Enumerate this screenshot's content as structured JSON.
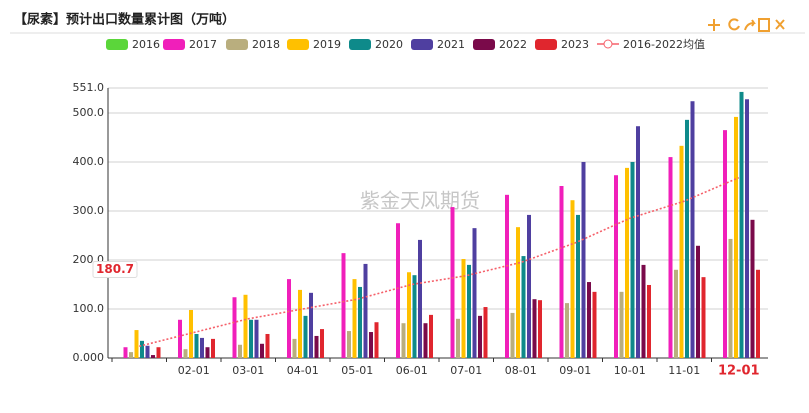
{
  "chart_data": {
    "type": "bar",
    "title": "【尿素】预计出口数量累计图（万吨）",
    "watermark": "紫金天风期货",
    "categories": [
      null,
      "02-01",
      "03-01",
      "04-01",
      "05-01",
      "06-01",
      "07-01",
      "08-01",
      "09-01",
      "10-01",
      "11-01",
      "12-01"
    ],
    "ylim": [
      0,
      551
    ],
    "yticks": [
      {
        "value": 0,
        "label": "0.000"
      },
      {
        "value": 100,
        "label": "100.0"
      },
      {
        "value": 200,
        "label": "200.0"
      },
      {
        "value": 300,
        "label": "300.0"
      },
      {
        "value": 400,
        "label": "400.0"
      },
      {
        "value": 500,
        "label": "500.0"
      },
      {
        "value": 551,
        "label": "551.0"
      }
    ],
    "grid": true,
    "legend": "top",
    "annotation": 180.7,
    "series": [
      {
        "name": "2016",
        "color": "#5bd63a",
        "values": [
          null,
          null,
          null,
          null,
          null,
          null,
          null,
          null,
          null,
          null,
          null,
          null
        ]
      },
      {
        "name": "2017",
        "color": "#f01fba",
        "values": [
          22,
          78,
          124,
          161,
          214,
          275,
          308,
          333,
          351,
          373,
          410,
          465
        ]
      },
      {
        "name": "2018",
        "color": "#b9ae7e",
        "values": [
          12,
          18,
          27,
          39,
          55,
          71,
          80,
          92,
          112,
          135,
          180,
          243
        ]
      },
      {
        "name": "2019",
        "color": "#ffc000",
        "values": [
          57,
          98,
          129,
          139,
          161,
          175,
          202,
          267,
          322,
          388,
          433,
          492
        ]
      },
      {
        "name": "2020",
        "color": "#0e8a8a",
        "values": [
          35,
          49,
          78,
          86,
          145,
          169,
          190,
          208,
          292,
          400,
          486,
          543
        ]
      },
      {
        "name": "2021",
        "color": "#4f3fa0",
        "values": [
          25,
          41,
          78,
          133,
          192,
          241,
          265,
          292,
          400,
          473,
          524,
          528
        ]
      },
      {
        "name": "2022",
        "color": "#7a0a4a",
        "values": [
          6,
          22,
          29,
          45,
          53,
          71,
          86,
          120,
          155,
          190,
          229,
          282
        ]
      },
      {
        "name": "2023",
        "color": "#e0262e",
        "values": [
          22,
          39,
          49,
          59,
          73,
          88,
          104,
          118,
          135,
          149,
          165,
          180
        ]
      },
      {
        "name": "2016-2022均值",
        "color": "#f5606a",
        "type": "line",
        "values": [
          24,
          52,
          80,
          100,
          120,
          150,
          168,
          195,
          235,
          285,
          320,
          368
        ]
      }
    ]
  }
}
